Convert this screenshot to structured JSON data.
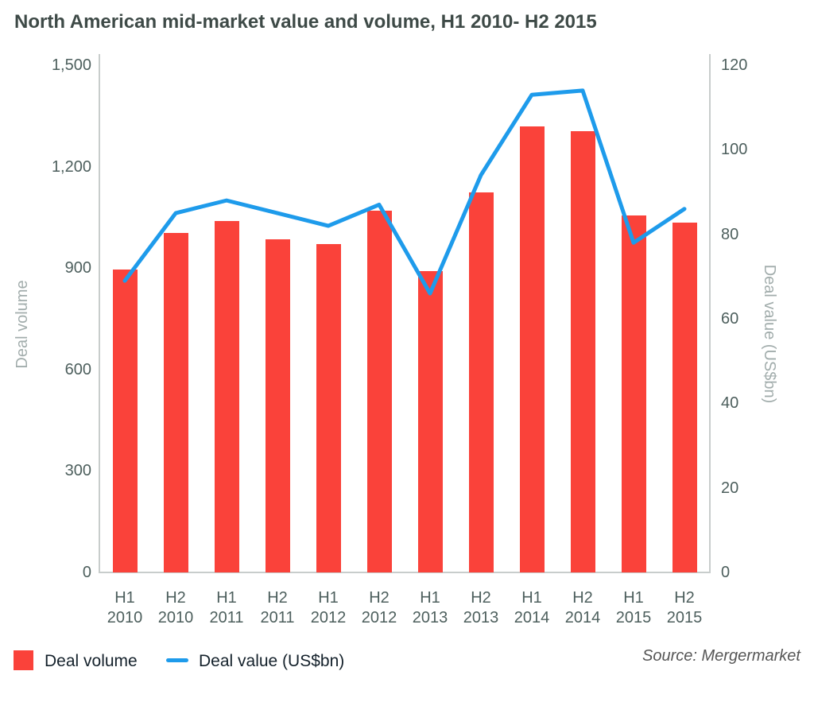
{
  "title": "North American mid-market value and volume, H1 2010- H2 2015",
  "source": "Source: Mergermarket",
  "legend": {
    "volume_label": "Deal volume",
    "value_label": "Deal value (US$bn)"
  },
  "colors": {
    "bar": "#FA423A",
    "line": "#1E9BEB",
    "axis_line": "#C8CDCC",
    "tick_text": "#4D5F5D",
    "axis_title_text": "#A2ADAC",
    "title_text": "#3E4A47",
    "legend_text": "#14212B",
    "source_text": "#565656",
    "background": "#FFFFFF"
  },
  "chart_data": {
    "type": "bar",
    "title": "North American mid-market value and volume, H1 2010- H2 2015",
    "categories": [
      "H1 2010",
      "H2 2010",
      "H1 2011",
      "H2 2011",
      "H1 2012",
      "H2 2012",
      "H1 2013",
      "H2 2013",
      "H1 2014",
      "H2 2014",
      "H1 2015",
      "H2 2015"
    ],
    "series": [
      {
        "name": "Deal volume",
        "type": "bar",
        "yaxis": "left",
        "values": [
          895,
          1005,
          1040,
          985,
          970,
          1070,
          890,
          1125,
          1320,
          1305,
          1055,
          1035
        ]
      },
      {
        "name": "Deal value (US$bn)",
        "type": "line",
        "yaxis": "right",
        "values": [
          69,
          85,
          88,
          85,
          82,
          87,
          66,
          94,
          113,
          114,
          78,
          86
        ]
      }
    ],
    "left_axis": {
      "label": "Deal volume",
      "min": 0,
      "max": 1500,
      "step": 300,
      "tick_labels": [
        "0",
        "300",
        "600",
        "900",
        "1,200",
        "1,500"
      ]
    },
    "right_axis": {
      "label": "Deal value (US$bn)",
      "min": 0,
      "max": 120,
      "step": 20,
      "tick_labels": [
        "0",
        "20",
        "40",
        "60",
        "80",
        "100",
        "120"
      ]
    },
    "grid": false,
    "legend_position": "bottom-left"
  }
}
